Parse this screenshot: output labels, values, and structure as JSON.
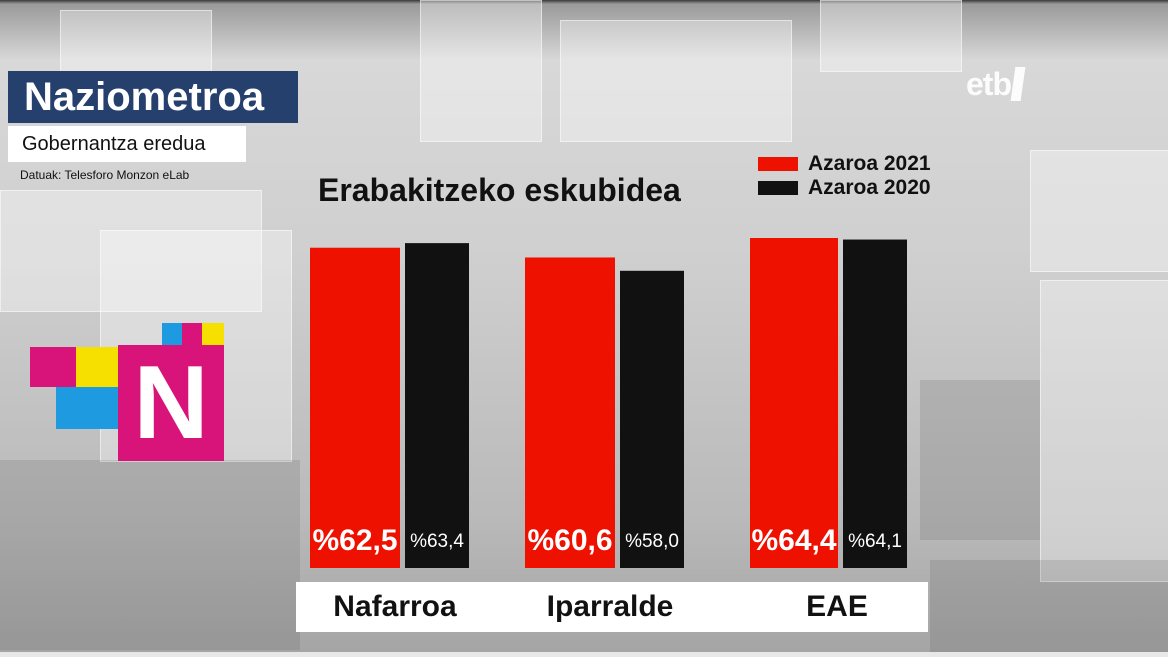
{
  "header": {
    "title": "Naziometroa",
    "subtitle": "Gobernantza eredua",
    "source": "Datuak: Telesforo Monzon eLab"
  },
  "channel_logo": "etb",
  "brand_logo_letter": "N",
  "colors": {
    "series_2021": "#ee1100",
    "series_2020": "#111111",
    "title_bg": "#26406e",
    "logo_magenta": "#d8147a",
    "logo_yellow": "#f5e000",
    "logo_blue": "#1e9be0"
  },
  "chart_data": {
    "type": "bar",
    "title": "Erabakitzeko eskubidea",
    "categories": [
      "Nafarroa",
      "Iparralde",
      "EAE"
    ],
    "series": [
      {
        "name": "Azaroa 2021",
        "values": [
          62.5,
          60.6,
          64.4
        ],
        "labels": [
          "%62,5",
          "%60,6",
          "%64,4"
        ]
      },
      {
        "name": "Azaroa 2020",
        "values": [
          63.4,
          58.0,
          64.1
        ],
        "labels": [
          "%63,4",
          "%58,0",
          "%64,1"
        ]
      }
    ],
    "legend_position": "top-right",
    "grid": false
  }
}
